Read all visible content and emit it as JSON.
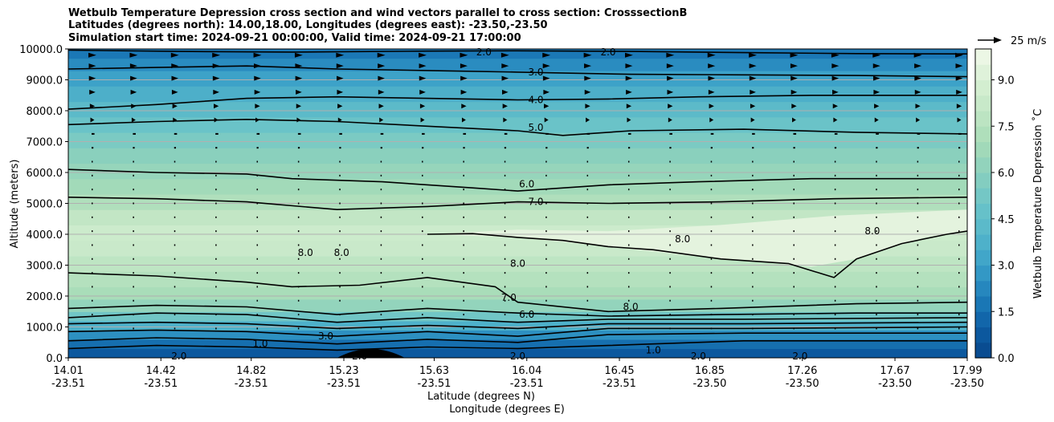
{
  "title": {
    "line1": "Wetbulb Temperature Depression cross section and wind vectors parallel to cross section: CrosssectionB",
    "line2": "Latitudes (degrees north): 14.00,18.00, Longitudes (degrees east): -23.50,-23.50",
    "line3": "Simulation start time: 2024-09-21 00:00:00, Valid time: 2024-09-21 17:00:00"
  },
  "chart_data": {
    "type": "heatmap",
    "subtype": "filled-contour cross section with contour lines and wind vectors",
    "ylabel": "Altitude (meters)",
    "xlabel_line1": "Latitude (degrees N)",
    "xlabel_line2": "Longitude (degrees E)",
    "ylim": [
      0,
      10000
    ],
    "y_ticks": [
      0,
      1000,
      2000,
      3000,
      4000,
      5000,
      6000,
      7000,
      8000,
      9000,
      10000
    ],
    "y_tick_labels": [
      "0.0",
      "1000.0",
      "2000.0",
      "3000.0",
      "4000.0",
      "5000.0",
      "6000.0",
      "7000.0",
      "8000.0",
      "9000.0",
      "10000.0"
    ],
    "x_range_lat": [
      14.01,
      17.99
    ],
    "x_ticks": [
      {
        "lat": "14.01",
        "lon": "-23.51"
      },
      {
        "lat": "14.42",
        "lon": "-23.51"
      },
      {
        "lat": "14.82",
        "lon": "-23.51"
      },
      {
        "lat": "15.23",
        "lon": "-23.51"
      },
      {
        "lat": "15.63",
        "lon": "-23.51"
      },
      {
        "lat": "16.04",
        "lon": "-23.51"
      },
      {
        "lat": "16.45",
        "lon": "-23.51"
      },
      {
        "lat": "16.85",
        "lon": "-23.50"
      },
      {
        "lat": "17.26",
        "lon": "-23.50"
      },
      {
        "lat": "17.67",
        "lon": "-23.50"
      },
      {
        "lat": "17.99",
        "lon": "-23.50"
      }
    ],
    "grid": "horizontal",
    "colorbar": {
      "label": "Wetbulb Temperature Depression ˚C",
      "range": [
        0,
        10
      ],
      "ticks": [
        0.0,
        1.5,
        3.0,
        4.5,
        6.0,
        7.5,
        9.0
      ],
      "tick_labels": [
        "0.0",
        "1.5",
        "3.0",
        "4.5",
        "6.0",
        "7.5",
        "9.0"
      ],
      "levels": 20
    },
    "vector_key": {
      "label": "25 m/s"
    },
    "contour_levels": [
      1.0,
      2.0,
      3.0,
      4.0,
      5.0,
      6.0,
      7.0,
      8.0
    ],
    "contours": [
      {
        "level": 2.0,
        "label": "2.0",
        "points": [
          [
            14.01,
            9960
          ],
          [
            14.5,
            9920
          ],
          [
            15.0,
            9900
          ],
          [
            15.6,
            9930
          ],
          [
            16.0,
            9940
          ],
          [
            16.5,
            9920
          ],
          [
            17.0,
            9880
          ],
          [
            17.5,
            9850
          ],
          [
            17.99,
            9840
          ]
        ]
      },
      {
        "level": 3.0,
        "label": "3.0",
        "points": [
          [
            14.01,
            9350
          ],
          [
            14.4,
            9400
          ],
          [
            14.8,
            9450
          ],
          [
            15.2,
            9350
          ],
          [
            15.6,
            9300
          ],
          [
            16.0,
            9250
          ],
          [
            16.5,
            9180
          ],
          [
            17.0,
            9160
          ],
          [
            17.5,
            9140
          ],
          [
            17.99,
            9100
          ]
        ]
      },
      {
        "level": 4.0,
        "label": "4.0",
        "points": [
          [
            14.01,
            8050
          ],
          [
            14.4,
            8200
          ],
          [
            14.8,
            8400
          ],
          [
            15.2,
            8450
          ],
          [
            15.6,
            8400
          ],
          [
            16.0,
            8350
          ],
          [
            16.4,
            8380
          ],
          [
            16.8,
            8450
          ],
          [
            17.3,
            8500
          ],
          [
            17.99,
            8500
          ]
        ]
      },
      {
        "level": 5.0,
        "label": "5.0",
        "points": [
          [
            14.01,
            7550
          ],
          [
            14.4,
            7650
          ],
          [
            14.8,
            7720
          ],
          [
            15.2,
            7650
          ],
          [
            15.6,
            7500
          ],
          [
            16.0,
            7350
          ],
          [
            16.2,
            7200
          ],
          [
            16.5,
            7350
          ],
          [
            17.0,
            7400
          ],
          [
            17.5,
            7300
          ],
          [
            17.99,
            7250
          ]
        ]
      },
      {
        "level": 6.0,
        "label": "6.0",
        "points": [
          [
            14.01,
            6100
          ],
          [
            14.4,
            6000
          ],
          [
            14.8,
            5950
          ],
          [
            15.0,
            5800
          ],
          [
            15.4,
            5700
          ],
          [
            15.8,
            5500
          ],
          [
            16.0,
            5400
          ],
          [
            16.4,
            5600
          ],
          [
            16.8,
            5700
          ],
          [
            17.3,
            5800
          ],
          [
            17.99,
            5800
          ]
        ]
      },
      {
        "level": 7.0,
        "label": "7.0",
        "points": [
          [
            14.01,
            5200
          ],
          [
            14.4,
            5150
          ],
          [
            14.8,
            5050
          ],
          [
            15.2,
            4800
          ],
          [
            15.6,
            4900
          ],
          [
            16.0,
            5050
          ],
          [
            16.4,
            5000
          ],
          [
            16.9,
            5050
          ],
          [
            17.4,
            5150
          ],
          [
            17.99,
            5200
          ]
        ]
      },
      {
        "level": 7.0,
        "label": "7.0",
        "points": [
          [
            14.01,
            2750
          ],
          [
            14.4,
            2650
          ],
          [
            14.8,
            2450
          ],
          [
            15.0,
            2300
          ],
          [
            15.3,
            2350
          ],
          [
            15.6,
            2600
          ],
          [
            15.9,
            2300
          ],
          [
            16.0,
            1800
          ],
          [
            16.4,
            1500
          ],
          [
            16.9,
            1600
          ],
          [
            17.5,
            1750
          ],
          [
            17.99,
            1800
          ]
        ]
      },
      {
        "level": 6.0,
        "label": "6.0",
        "points": [
          [
            14.01,
            1600
          ],
          [
            14.4,
            1700
          ],
          [
            14.8,
            1650
          ],
          [
            15.2,
            1400
          ],
          [
            15.6,
            1600
          ],
          [
            16.0,
            1450
          ],
          [
            16.4,
            1350
          ],
          [
            16.9,
            1400
          ],
          [
            17.5,
            1450
          ],
          [
            17.99,
            1450
          ]
        ]
      },
      {
        "level": 5.0,
        "label": "5.0",
        "points": [
          [
            14.01,
            1300
          ],
          [
            14.4,
            1450
          ],
          [
            14.8,
            1400
          ],
          [
            15.2,
            1150
          ],
          [
            15.6,
            1300
          ],
          [
            16.0,
            1150
          ],
          [
            16.4,
            1250
          ],
          [
            17.0,
            1250
          ],
          [
            17.99,
            1300
          ]
        ]
      },
      {
        "level": 4.0,
        "label": "4.0",
        "points": [
          [
            14.01,
            1100
          ],
          [
            14.4,
            1150
          ],
          [
            14.8,
            1100
          ],
          [
            15.2,
            950
          ],
          [
            15.6,
            1050
          ],
          [
            16.0,
            950
          ],
          [
            16.4,
            1100
          ],
          [
            17.0,
            1100
          ],
          [
            17.99,
            1150
          ]
        ]
      },
      {
        "level": 3.0,
        "label": "3.0",
        "points": [
          [
            14.01,
            850
          ],
          [
            14.4,
            900
          ],
          [
            14.8,
            850
          ],
          [
            15.2,
            700
          ],
          [
            15.6,
            850
          ],
          [
            16.0,
            700
          ],
          [
            16.4,
            950
          ],
          [
            17.0,
            950
          ],
          [
            17.99,
            1000
          ]
        ]
      },
      {
        "level": 2.0,
        "label": "2.0",
        "points": [
          [
            14.01,
            550
          ],
          [
            14.4,
            650
          ],
          [
            14.8,
            600
          ],
          [
            15.2,
            450
          ],
          [
            15.6,
            600
          ],
          [
            16.0,
            500
          ],
          [
            16.4,
            750
          ],
          [
            17.0,
            800
          ],
          [
            17.99,
            800
          ]
        ]
      },
      {
        "level": 1.0,
        "label": "1.0",
        "points": [
          [
            14.01,
            300
          ],
          [
            14.4,
            400
          ],
          [
            14.8,
            350
          ],
          [
            15.2,
            250
          ],
          [
            15.6,
            350
          ],
          [
            16.0,
            300
          ],
          [
            16.4,
            400
          ],
          [
            17.0,
            550
          ],
          [
            17.99,
            550
          ]
        ]
      },
      {
        "level": 8.0,
        "label": "8.0",
        "points": [
          [
            15.6,
            4000
          ],
          [
            15.8,
            4020
          ],
          [
            16.0,
            3900
          ],
          [
            16.2,
            3800
          ],
          [
            16.4,
            3600
          ],
          [
            16.6,
            3500
          ],
          [
            16.9,
            3200
          ],
          [
            17.2,
            3050
          ],
          [
            17.4,
            2600
          ],
          [
            17.5,
            3200
          ],
          [
            17.7,
            3700
          ],
          [
            17.9,
            4000
          ],
          [
            17.99,
            4100
          ]
        ]
      }
    ],
    "contour_labels": [
      {
        "text": "2.0",
        "lat": 15.85,
        "alt": 9900
      },
      {
        "text": "2.0",
        "lat": 16.4,
        "alt": 9900
      },
      {
        "text": "3.0",
        "lat": 16.08,
        "alt": 9250
      },
      {
        "text": "4.0",
        "lat": 16.08,
        "alt": 8350
      },
      {
        "text": "5.0",
        "lat": 16.08,
        "alt": 7450
      },
      {
        "text": "6.0",
        "lat": 16.04,
        "alt": 5620
      },
      {
        "text": "7.0",
        "lat": 16.08,
        "alt": 5050
      },
      {
        "text": "8.0",
        "lat": 16.0,
        "alt": 3050
      },
      {
        "text": "7.0",
        "lat": 15.96,
        "alt": 1950
      },
      {
        "text": "6.0",
        "lat": 16.04,
        "alt": 1400
      },
      {
        "text": "8.0",
        "lat": 15.06,
        "alt": 3400
      },
      {
        "text": "8.0",
        "lat": 15.22,
        "alt": 3400
      },
      {
        "text": "8.0",
        "lat": 16.73,
        "alt": 3850
      },
      {
        "text": "8.0",
        "lat": 17.57,
        "alt": 4100
      },
      {
        "text": "8.0",
        "lat": 16.5,
        "alt": 1650
      },
      {
        "text": "3.0",
        "lat": 15.15,
        "alt": 700
      },
      {
        "text": "2.0",
        "lat": 14.5,
        "alt": 50
      },
      {
        "text": "2.0",
        "lat": 15.3,
        "alt": 50
      },
      {
        "text": "2.0",
        "lat": 16.0,
        "alt": 50
      },
      {
        "text": "2.0",
        "lat": 16.8,
        "alt": 50
      },
      {
        "text": "2.0",
        "lat": 17.25,
        "alt": 50
      },
      {
        "text": "1.0",
        "lat": 14.86,
        "alt": 450
      },
      {
        "text": "1.0",
        "lat": 16.6,
        "alt": 250
      }
    ],
    "wind_vectors": {
      "direction": "parallel to section, toward increasing latitude",
      "rows_m": [
        9800,
        9450,
        9050,
        8600,
        8150,
        7700,
        7250,
        6800,
        6350,
        5900,
        5450,
        5000,
        4550,
        4100,
        3650,
        3200,
        2750,
        2300,
        1850,
        1400,
        950
      ],
      "columns_count": 22,
      "speed_by_row_ms": [
        22,
        20,
        19,
        17,
        14,
        11,
        8,
        5,
        3,
        2,
        2,
        2,
        1.5,
        1.5,
        1.5,
        1.5,
        1.5,
        1.5,
        1.5,
        1.5,
        1.5
      ]
    },
    "colors": {
      "darkest": "#08468b",
      "mid_blue": "#3aa0c8",
      "teal": "#6cc4c8",
      "green": "#a8dcb8",
      "light_green": "#d4eecf",
      "palest": "#f2f9eb",
      "contour": "#000000",
      "grid": "#b0b0b0"
    }
  }
}
